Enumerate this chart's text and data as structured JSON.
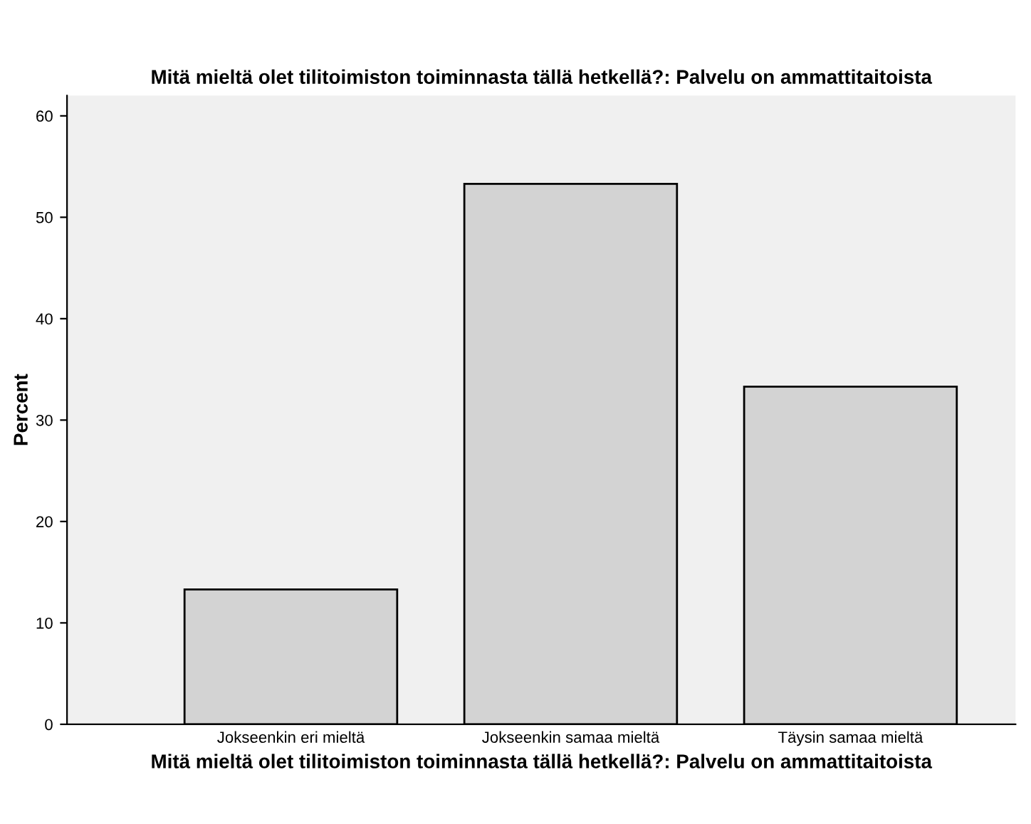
{
  "chart_data": {
    "type": "bar",
    "title": "Mitä mieltä olet tilitoimiston toiminnasta tällä hetkellä?: Palvelu on ammattitaitoista",
    "xlabel": "Mitä mieltä olet tilitoimiston toiminnasta tällä hetkellä?: Palvelu on ammattitaitoista",
    "ylabel": "Percent",
    "categories": [
      "Jokseenkin eri mieltä",
      "Jokseenkin samaa mieltä",
      "Täysin samaa mieltä"
    ],
    "values": [
      13.3,
      53.3,
      33.3
    ],
    "color": "#d3d3d3",
    "ylim": [
      0,
      62
    ],
    "yticks": [
      0,
      10,
      20,
      30,
      40,
      50,
      60
    ],
    "grid": false
  }
}
